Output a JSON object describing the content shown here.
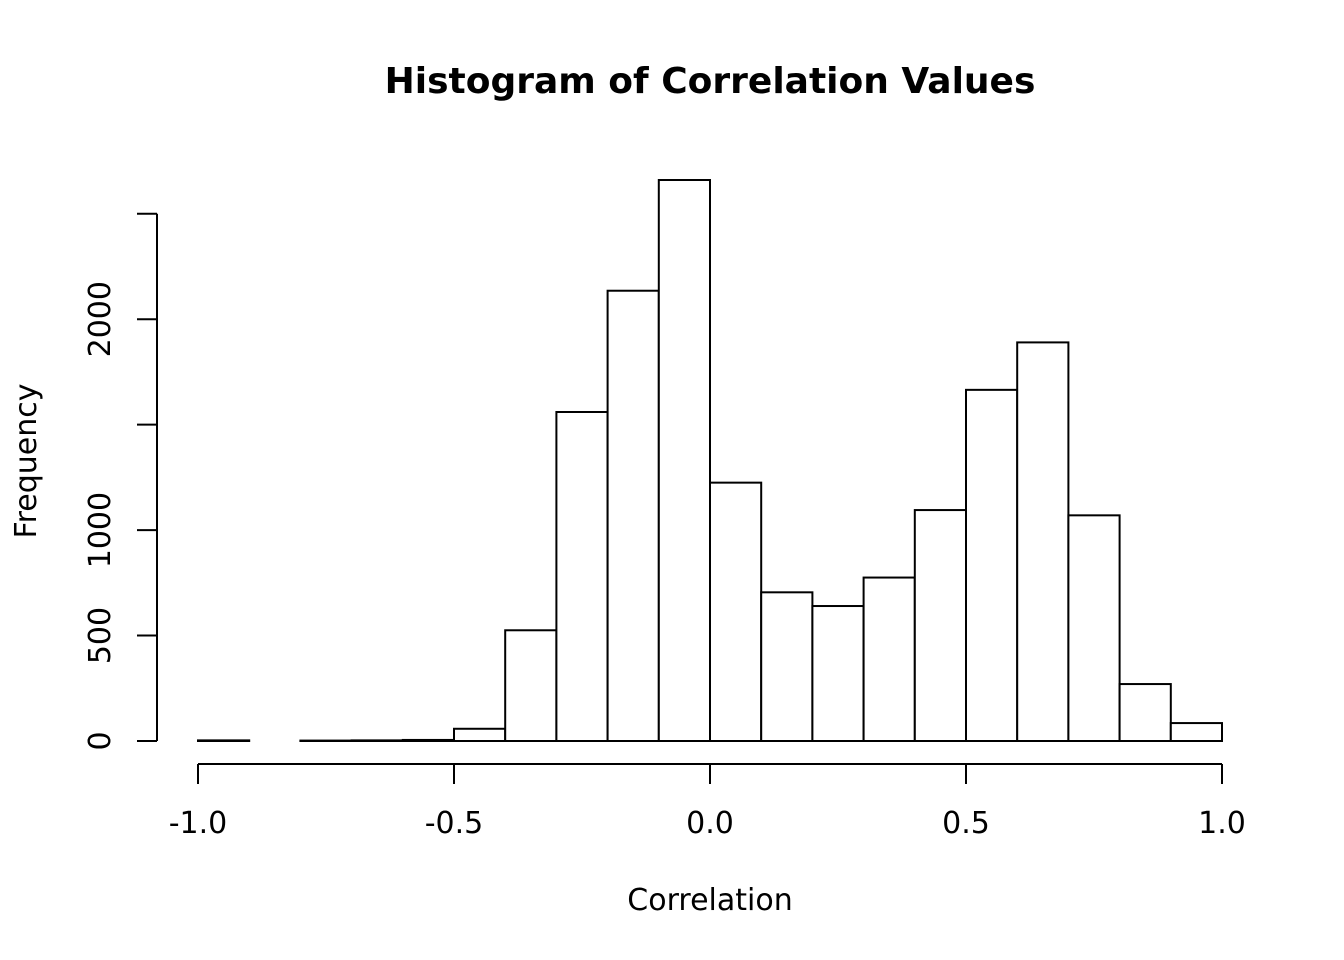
{
  "chart_data": {
    "type": "bar",
    "title": "Histogram of Correlation Values",
    "xlabel": "Correlation",
    "ylabel": "Frequency",
    "xlim": [
      -1.0,
      1.0
    ],
    "ylim": [
      0,
      2650
    ],
    "x_ticks": [
      -1.0,
      -0.5,
      0.0,
      0.5,
      1.0
    ],
    "x_tick_labels": [
      "-1.0",
      "-0.5",
      "0.0",
      "0.5",
      "1.0"
    ],
    "y_ticks": [
      0,
      500,
      1000,
      1500,
      2000,
      2500
    ],
    "y_tick_labels": [
      "0",
      "500",
      "1000",
      "",
      "2000",
      ""
    ],
    "bin_edges": [
      -1.0,
      -0.9,
      -0.8,
      -0.7,
      -0.6,
      -0.5,
      -0.4,
      -0.3,
      -0.2,
      -0.1,
      0.0,
      0.1,
      0.2,
      0.3,
      0.4,
      0.5,
      0.6,
      0.7,
      0.8,
      0.9,
      1.0
    ],
    "values": [
      3,
      0,
      2,
      3,
      5,
      58,
      525,
      1560,
      2135,
      2660,
      1225,
      705,
      640,
      775,
      1095,
      1665,
      1890,
      1070,
      270,
      85
    ],
    "grid": false,
    "legend": "none"
  }
}
